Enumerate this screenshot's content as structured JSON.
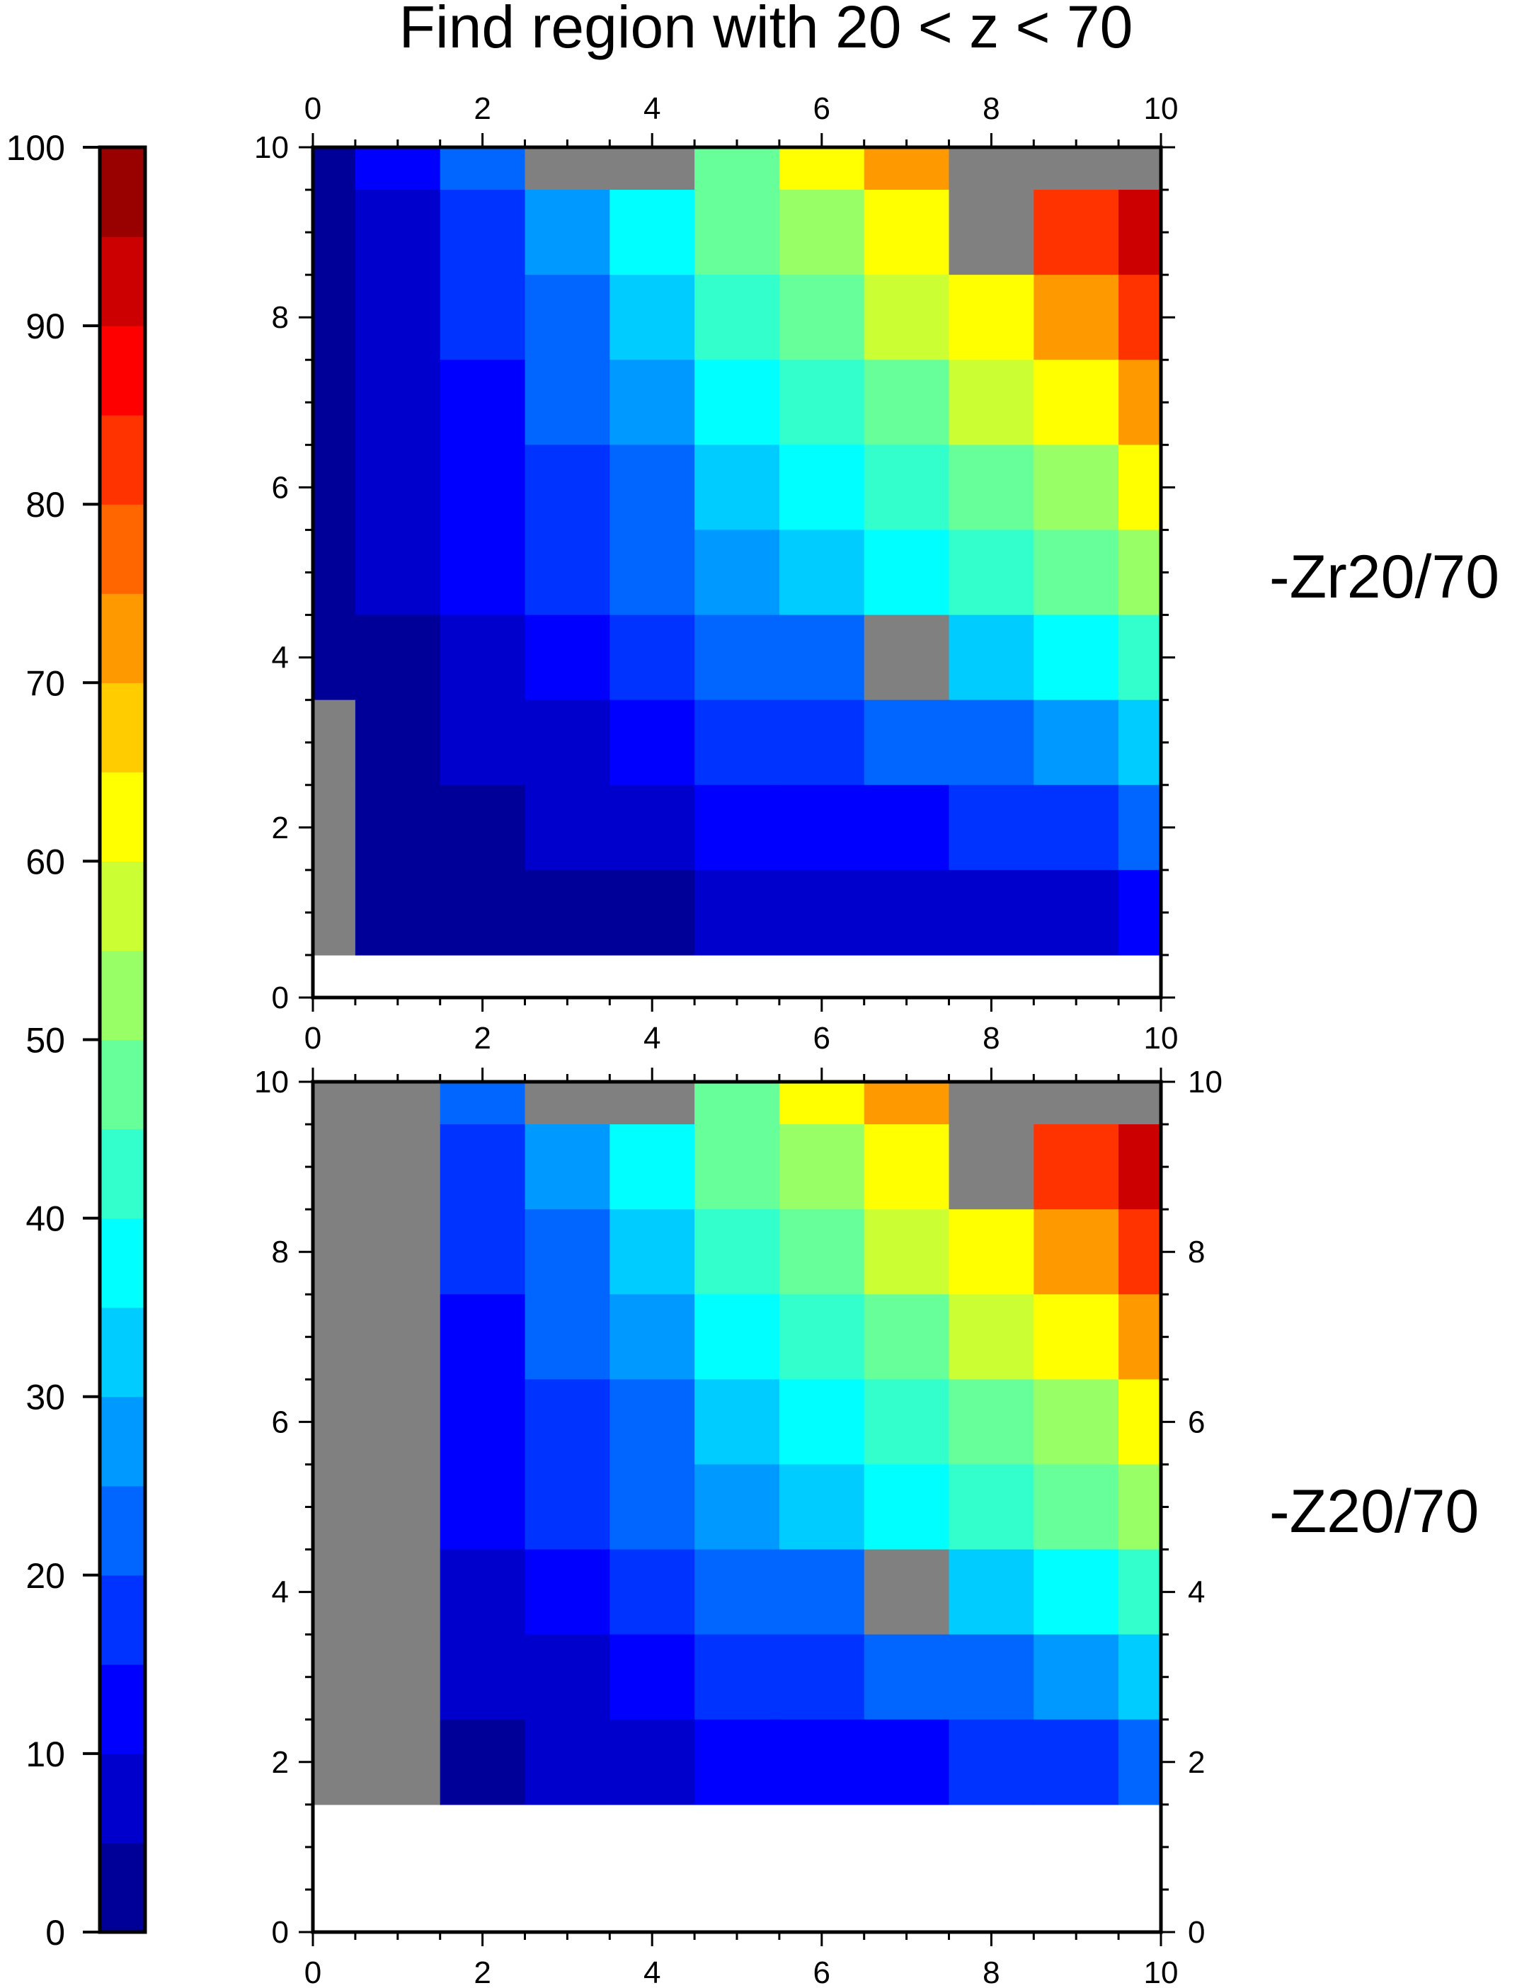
{
  "title": "Find region with 20 < z < 70",
  "colorbar": {
    "ticks": [
      0,
      10,
      20,
      30,
      40,
      50,
      60,
      70,
      80,
      90,
      100
    ],
    "step": 5,
    "colors": [
      "#000099",
      "#0000cc",
      "#0000ff",
      "#0033ff",
      "#0066ff",
      "#0099ff",
      "#00ccff",
      "#00ffff",
      "#33ffcc",
      "#66ff99",
      "#99ff66",
      "#ccff33",
      "#ffff00",
      "#ffcc00",
      "#ff9900",
      "#ff6600",
      "#ff3300",
      "#ff0000",
      "#cc0000",
      "#990000"
    ]
  },
  "nan_color": "#808080",
  "chart_data": [
    {
      "type": "heatmap",
      "label": "-Zr20/70",
      "xlim": [
        0,
        10
      ],
      "ylim": [
        0,
        10
      ],
      "x": [
        0,
        1,
        2,
        3,
        4,
        5,
        6,
        7,
        8,
        9,
        10
      ],
      "y": [
        1,
        2,
        3,
        4,
        5,
        6,
        7,
        8,
        9,
        10
      ],
      "z_rows_top_to_bottom": [
        [
          2,
          12,
          22,
          null,
          null,
          47,
          62,
          72,
          null,
          null,
          null
        ],
        [
          3,
          7,
          17,
          27,
          37,
          45,
          52,
          62,
          null,
          82,
          92
        ],
        [
          3,
          7,
          17,
          22,
          32,
          42,
          47,
          57,
          62,
          72,
          82
        ],
        [
          3,
          7,
          12,
          22,
          27,
          37,
          42,
          47,
          57,
          62,
          72
        ],
        [
          3,
          7,
          12,
          17,
          22,
          32,
          37,
          42,
          47,
          52,
          62
        ],
        [
          3,
          7,
          12,
          17,
          22,
          27,
          32,
          37,
          42,
          47,
          52
        ],
        [
          2,
          2,
          7,
          12,
          17,
          22,
          22,
          null,
          32,
          37,
          42
        ],
        [
          null,
          2,
          7,
          7,
          12,
          17,
          17,
          22,
          22,
          27,
          32
        ],
        [
          null,
          2,
          2,
          7,
          7,
          12,
          12,
          12,
          17,
          17,
          22
        ],
        [
          null,
          2,
          2,
          2,
          2,
          7,
          7,
          7,
          7,
          7,
          12
        ]
      ]
    },
    {
      "type": "heatmap",
      "label": "-Z20/70",
      "xlim": [
        0,
        10
      ],
      "ylim": [
        0,
        10
      ],
      "x": [
        0,
        1,
        2,
        3,
        4,
        5,
        6,
        7,
        8,
        9,
        10
      ],
      "y": [
        2,
        3,
        4,
        5,
        6,
        7,
        8,
        9,
        10
      ],
      "z_rows_top_to_bottom": [
        [
          null,
          null,
          22,
          null,
          null,
          47,
          62,
          72,
          null,
          null,
          null
        ],
        [
          null,
          null,
          17,
          27,
          37,
          45,
          52,
          62,
          null,
          82,
          92
        ],
        [
          null,
          null,
          17,
          22,
          32,
          42,
          47,
          57,
          62,
          72,
          82
        ],
        [
          null,
          null,
          12,
          22,
          27,
          37,
          42,
          47,
          57,
          62,
          72
        ],
        [
          null,
          null,
          12,
          17,
          22,
          32,
          37,
          42,
          47,
          52,
          62
        ],
        [
          null,
          null,
          12,
          17,
          22,
          27,
          32,
          37,
          42,
          47,
          52
        ],
        [
          null,
          null,
          7,
          12,
          17,
          22,
          22,
          null,
          32,
          37,
          42
        ],
        [
          null,
          null,
          7,
          7,
          12,
          17,
          17,
          22,
          22,
          27,
          32
        ],
        [
          null,
          null,
          2,
          7,
          7,
          12,
          12,
          12,
          17,
          17,
          22
        ]
      ]
    }
  ]
}
